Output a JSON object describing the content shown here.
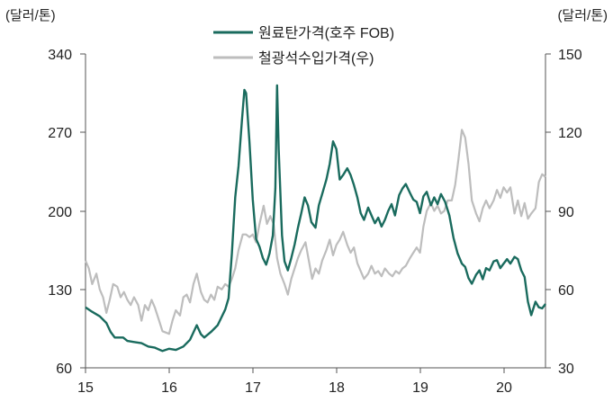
{
  "chart_data": {
    "type": "line",
    "y_left_unit": "(달러/톤)",
    "y_right_unit": "(달러/톤)",
    "y_left_ticks": [
      "340",
      "270",
      "200",
      "130",
      "60"
    ],
    "y_right_ticks": [
      "150",
      "120",
      "90",
      "60",
      "30"
    ],
    "x_ticks": [
      "15",
      "16",
      "17",
      "18",
      "19",
      "20"
    ],
    "ylim_left": [
      60,
      340
    ],
    "ylim_right": [
      30,
      150
    ],
    "xlim": [
      2015.0,
      2020.5
    ],
    "grid": false,
    "legend_position": "top-center",
    "series": [
      {
        "name": "원료탄가격(호주 FOB)",
        "axis": "left",
        "color": "#1a6b5e",
        "points": [
          [
            2015.0,
            114
          ],
          [
            2015.08,
            110
          ],
          [
            2015.17,
            106
          ],
          [
            2015.25,
            100
          ],
          [
            2015.3,
            92
          ],
          [
            2015.35,
            87
          ],
          [
            2015.45,
            87
          ],
          [
            2015.5,
            84
          ],
          [
            2015.58,
            83
          ],
          [
            2015.67,
            82
          ],
          [
            2015.75,
            79
          ],
          [
            2015.83,
            78
          ],
          [
            2015.92,
            75
          ],
          [
            2016.0,
            77
          ],
          [
            2016.08,
            76
          ],
          [
            2016.17,
            79
          ],
          [
            2016.25,
            85
          ],
          [
            2016.33,
            98
          ],
          [
            2016.38,
            90
          ],
          [
            2016.42,
            87
          ],
          [
            2016.5,
            92
          ],
          [
            2016.58,
            98
          ],
          [
            2016.67,
            112
          ],
          [
            2016.71,
            122
          ],
          [
            2016.75,
            162
          ],
          [
            2016.79,
            212
          ],
          [
            2016.83,
            240
          ],
          [
            2016.87,
            280
          ],
          [
            2016.9,
            308
          ],
          [
            2016.92,
            305
          ],
          [
            2016.96,
            262
          ],
          [
            2017.0,
            210
          ],
          [
            2017.04,
            175
          ],
          [
            2017.08,
            168
          ],
          [
            2017.12,
            158
          ],
          [
            2017.16,
            152
          ],
          [
            2017.2,
            162
          ],
          [
            2017.24,
            178
          ],
          [
            2017.27,
            220
          ],
          [
            2017.29,
            312
          ],
          [
            2017.31,
            255
          ],
          [
            2017.35,
            178
          ],
          [
            2017.38,
            155
          ],
          [
            2017.42,
            147
          ],
          [
            2017.46,
            158
          ],
          [
            2017.5,
            170
          ],
          [
            2017.54,
            185
          ],
          [
            2017.58,
            198
          ],
          [
            2017.62,
            212
          ],
          [
            2017.66,
            205
          ],
          [
            2017.7,
            190
          ],
          [
            2017.75,
            185
          ],
          [
            2017.79,
            205
          ],
          [
            2017.83,
            215
          ],
          [
            2017.88,
            228
          ],
          [
            2017.92,
            242
          ],
          [
            2017.96,
            262
          ],
          [
            2018.0,
            255
          ],
          [
            2018.04,
            228
          ],
          [
            2018.08,
            232
          ],
          [
            2018.13,
            238
          ],
          [
            2018.17,
            232
          ],
          [
            2018.21,
            223
          ],
          [
            2018.25,
            212
          ],
          [
            2018.29,
            198
          ],
          [
            2018.33,
            192
          ],
          [
            2018.38,
            203
          ],
          [
            2018.42,
            196
          ],
          [
            2018.46,
            189
          ],
          [
            2018.5,
            194
          ],
          [
            2018.54,
            186
          ],
          [
            2018.58,
            192
          ],
          [
            2018.62,
            200
          ],
          [
            2018.66,
            206
          ],
          [
            2018.7,
            196
          ],
          [
            2018.75,
            214
          ],
          [
            2018.79,
            220
          ],
          [
            2018.83,
            224
          ],
          [
            2018.88,
            216
          ],
          [
            2018.92,
            210
          ],
          [
            2018.96,
            208
          ],
          [
            2019.0,
            198
          ],
          [
            2019.04,
            213
          ],
          [
            2019.08,
            217
          ],
          [
            2019.13,
            205
          ],
          [
            2019.17,
            212
          ],
          [
            2019.21,
            206
          ],
          [
            2019.25,
            215
          ],
          [
            2019.3,
            208
          ],
          [
            2019.35,
            196
          ],
          [
            2019.4,
            176
          ],
          [
            2019.45,
            162
          ],
          [
            2019.5,
            153
          ],
          [
            2019.54,
            150
          ],
          [
            2019.58,
            140
          ],
          [
            2019.62,
            135
          ],
          [
            2019.67,
            143
          ],
          [
            2019.71,
            147
          ],
          [
            2019.75,
            139
          ],
          [
            2019.79,
            149
          ],
          [
            2019.83,
            147
          ],
          [
            2019.88,
            155
          ],
          [
            2019.92,
            156
          ],
          [
            2019.96,
            149
          ],
          [
            2020.0,
            153
          ],
          [
            2020.04,
            157
          ],
          [
            2020.08,
            153
          ],
          [
            2020.13,
            159
          ],
          [
            2020.17,
            157
          ],
          [
            2020.21,
            147
          ],
          [
            2020.25,
            141
          ],
          [
            2020.29,
            119
          ],
          [
            2020.33,
            107
          ],
          [
            2020.38,
            119
          ],
          [
            2020.42,
            114
          ],
          [
            2020.46,
            113
          ],
          [
            2020.5,
            117
          ]
        ]
      },
      {
        "name": "철광석수입가격(우)",
        "axis": "right",
        "color": "#bdbdbd",
        "points": [
          [
            2015.0,
            71
          ],
          [
            2015.04,
            68
          ],
          [
            2015.08,
            62
          ],
          [
            2015.13,
            66
          ],
          [
            2015.17,
            60
          ],
          [
            2015.21,
            57
          ],
          [
            2015.25,
            51
          ],
          [
            2015.29,
            56
          ],
          [
            2015.33,
            62
          ],
          [
            2015.38,
            61
          ],
          [
            2015.42,
            57
          ],
          [
            2015.46,
            59
          ],
          [
            2015.5,
            56
          ],
          [
            2015.54,
            54
          ],
          [
            2015.58,
            57
          ],
          [
            2015.63,
            54
          ],
          [
            2015.67,
            48
          ],
          [
            2015.71,
            54
          ],
          [
            2015.75,
            52
          ],
          [
            2015.79,
            56
          ],
          [
            2015.83,
            53
          ],
          [
            2015.88,
            48
          ],
          [
            2015.92,
            44
          ],
          [
            2016.0,
            43
          ],
          [
            2016.04,
            48
          ],
          [
            2016.08,
            52
          ],
          [
            2016.13,
            50
          ],
          [
            2016.17,
            57
          ],
          [
            2016.21,
            58
          ],
          [
            2016.25,
            55
          ],
          [
            2016.29,
            62
          ],
          [
            2016.33,
            66
          ],
          [
            2016.38,
            59
          ],
          [
            2016.42,
            56
          ],
          [
            2016.46,
            55
          ],
          [
            2016.5,
            58
          ],
          [
            2016.54,
            56
          ],
          [
            2016.58,
            61
          ],
          [
            2016.63,
            60
          ],
          [
            2016.67,
            62
          ],
          [
            2016.71,
            61
          ],
          [
            2016.75,
            64
          ],
          [
            2016.79,
            68
          ],
          [
            2016.83,
            75
          ],
          [
            2016.88,
            81
          ],
          [
            2016.92,
            81
          ],
          [
            2016.96,
            80
          ],
          [
            2017.0,
            81
          ],
          [
            2017.04,
            78
          ],
          [
            2017.08,
            85
          ],
          [
            2017.13,
            92
          ],
          [
            2017.17,
            85
          ],
          [
            2017.21,
            88
          ],
          [
            2017.25,
            85
          ],
          [
            2017.29,
            72
          ],
          [
            2017.33,
            66
          ],
          [
            2017.38,
            62
          ],
          [
            2017.42,
            58
          ],
          [
            2017.46,
            64
          ],
          [
            2017.5,
            68
          ],
          [
            2017.54,
            72
          ],
          [
            2017.58,
            75
          ],
          [
            2017.63,
            78
          ],
          [
            2017.67,
            71
          ],
          [
            2017.71,
            64
          ],
          [
            2017.75,
            68
          ],
          [
            2017.79,
            66
          ],
          [
            2017.83,
            71
          ],
          [
            2017.88,
            75
          ],
          [
            2017.92,
            79
          ],
          [
            2017.96,
            73
          ],
          [
            2018.0,
            77
          ],
          [
            2018.04,
            79
          ],
          [
            2018.08,
            82
          ],
          [
            2018.13,
            77
          ],
          [
            2018.17,
            74
          ],
          [
            2018.21,
            76
          ],
          [
            2018.25,
            70
          ],
          [
            2018.29,
            67
          ],
          [
            2018.33,
            64
          ],
          [
            2018.38,
            66
          ],
          [
            2018.42,
            69
          ],
          [
            2018.46,
            66
          ],
          [
            2018.5,
            67
          ],
          [
            2018.54,
            65
          ],
          [
            2018.58,
            68
          ],
          [
            2018.63,
            66
          ],
          [
            2018.67,
            65
          ],
          [
            2018.71,
            67
          ],
          [
            2018.75,
            66
          ],
          [
            2018.79,
            68
          ],
          [
            2018.83,
            69
          ],
          [
            2018.88,
            72
          ],
          [
            2018.92,
            74
          ],
          [
            2018.96,
            76
          ],
          [
            2019.0,
            74
          ],
          [
            2019.04,
            84
          ],
          [
            2019.08,
            90
          ],
          [
            2019.13,
            93
          ],
          [
            2019.17,
            90
          ],
          [
            2019.21,
            92
          ],
          [
            2019.25,
            89
          ],
          [
            2019.29,
            90
          ],
          [
            2019.33,
            94
          ],
          [
            2019.38,
            94
          ],
          [
            2019.42,
            100
          ],
          [
            2019.46,
            110
          ],
          [
            2019.5,
            121
          ],
          [
            2019.54,
            118
          ],
          [
            2019.58,
            108
          ],
          [
            2019.62,
            94
          ],
          [
            2019.67,
            89
          ],
          [
            2019.71,
            86
          ],
          [
            2019.75,
            91
          ],
          [
            2019.79,
            94
          ],
          [
            2019.83,
            91
          ],
          [
            2019.88,
            94
          ],
          [
            2019.92,
            98
          ],
          [
            2019.96,
            95
          ],
          [
            2020.0,
            99
          ],
          [
            2020.04,
            97
          ],
          [
            2020.08,
            99
          ],
          [
            2020.13,
            89
          ],
          [
            2020.17,
            94
          ],
          [
            2020.21,
            88
          ],
          [
            2020.25,
            93
          ],
          [
            2020.29,
            87
          ],
          [
            2020.33,
            89
          ],
          [
            2020.38,
            91
          ],
          [
            2020.42,
            101
          ],
          [
            2020.46,
            104
          ],
          [
            2020.5,
            103
          ]
        ]
      }
    ]
  }
}
